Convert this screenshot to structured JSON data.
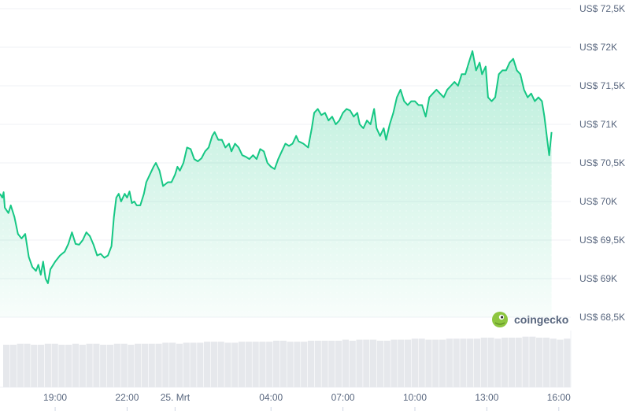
{
  "chart_data": {
    "type": "area",
    "y_ticks": [
      "US$ 72,5K",
      "US$ 72K",
      "US$ 71,5K",
      "US$ 71K",
      "US$ 70,5K",
      "US$ 70K",
      "US$ 69,5K",
      "US$ 69K",
      "US$ 68,5K"
    ],
    "y_tick_values": [
      72500,
      72000,
      71500,
      71000,
      70500,
      70000,
      69500,
      69000,
      68500
    ],
    "ylim": [
      68500,
      72500
    ],
    "x_ticks": [
      "19:00",
      "22:00",
      "25. Mrt",
      "04:00",
      "07:00",
      "10:00",
      "13:00",
      "16:00"
    ],
    "x_tick_hours": [
      19,
      22,
      24,
      28,
      31,
      34,
      37,
      40
    ],
    "xlim_hours": [
      16.7,
      40.5
    ],
    "grid": true,
    "line_color": "#16c784",
    "series": [
      {
        "points": [
          [
            16.7,
            70100
          ],
          [
            16.8,
            70050
          ],
          [
            16.85,
            70120
          ],
          [
            16.9,
            69920
          ],
          [
            17.05,
            69850
          ],
          [
            17.15,
            69950
          ],
          [
            17.3,
            69800
          ],
          [
            17.45,
            69580
          ],
          [
            17.6,
            69520
          ],
          [
            17.75,
            69580
          ],
          [
            17.9,
            69280
          ],
          [
            18.05,
            69150
          ],
          [
            18.2,
            69100
          ],
          [
            18.3,
            69180
          ],
          [
            18.4,
            69050
          ],
          [
            18.5,
            69220
          ],
          [
            18.6,
            69000
          ],
          [
            18.7,
            68940
          ],
          [
            18.8,
            69120
          ],
          [
            19.0,
            69220
          ],
          [
            19.2,
            69300
          ],
          [
            19.4,
            69350
          ],
          [
            19.55,
            69450
          ],
          [
            19.7,
            69600
          ],
          [
            19.85,
            69450
          ],
          [
            20.0,
            69440
          ],
          [
            20.15,
            69500
          ],
          [
            20.3,
            69600
          ],
          [
            20.45,
            69550
          ],
          [
            20.6,
            69440
          ],
          [
            20.75,
            69300
          ],
          [
            20.9,
            69320
          ],
          [
            21.05,
            69270
          ],
          [
            21.2,
            69300
          ],
          [
            21.35,
            69420
          ],
          [
            21.45,
            69800
          ],
          [
            21.55,
            70050
          ],
          [
            21.65,
            70100
          ],
          [
            21.75,
            70000
          ],
          [
            21.9,
            70100
          ],
          [
            22.0,
            70050
          ],
          [
            22.1,
            70130
          ],
          [
            22.2,
            69980
          ],
          [
            22.3,
            70000
          ],
          [
            22.4,
            69950
          ],
          [
            22.55,
            69950
          ],
          [
            22.7,
            70100
          ],
          [
            22.8,
            70250
          ],
          [
            22.95,
            70350
          ],
          [
            23.1,
            70450
          ],
          [
            23.2,
            70500
          ],
          [
            23.35,
            70400
          ],
          [
            23.5,
            70200
          ],
          [
            23.7,
            70250
          ],
          [
            23.85,
            70250
          ],
          [
            24.0,
            70350
          ],
          [
            24.1,
            70450
          ],
          [
            24.2,
            70400
          ],
          [
            24.35,
            70500
          ],
          [
            24.5,
            70700
          ],
          [
            24.65,
            70680
          ],
          [
            24.8,
            70550
          ],
          [
            24.95,
            70520
          ],
          [
            25.1,
            70560
          ],
          [
            25.25,
            70650
          ],
          [
            25.4,
            70700
          ],
          [
            25.55,
            70850
          ],
          [
            25.65,
            70900
          ],
          [
            25.8,
            70800
          ],
          [
            25.95,
            70800
          ],
          [
            26.1,
            70700
          ],
          [
            26.25,
            70750
          ],
          [
            26.35,
            70650
          ],
          [
            26.5,
            70750
          ],
          [
            26.65,
            70700
          ],
          [
            26.8,
            70600
          ],
          [
            26.95,
            70580
          ],
          [
            27.1,
            70550
          ],
          [
            27.25,
            70600
          ],
          [
            27.4,
            70550
          ],
          [
            27.55,
            70680
          ],
          [
            27.7,
            70650
          ],
          [
            27.85,
            70500
          ],
          [
            28.0,
            70450
          ],
          [
            28.15,
            70420
          ],
          [
            28.3,
            70550
          ],
          [
            28.45,
            70650
          ],
          [
            28.6,
            70750
          ],
          [
            28.75,
            70720
          ],
          [
            28.9,
            70750
          ],
          [
            29.05,
            70850
          ],
          [
            29.15,
            70780
          ],
          [
            29.35,
            70750
          ],
          [
            29.55,
            70700
          ],
          [
            29.7,
            70950
          ],
          [
            29.8,
            71150
          ],
          [
            29.95,
            71200
          ],
          [
            30.1,
            71120
          ],
          [
            30.25,
            71150
          ],
          [
            30.4,
            71050
          ],
          [
            30.55,
            71100
          ],
          [
            30.7,
            71000
          ],
          [
            30.85,
            71050
          ],
          [
            31.0,
            71150
          ],
          [
            31.15,
            71200
          ],
          [
            31.3,
            71180
          ],
          [
            31.45,
            71100
          ],
          [
            31.6,
            71150
          ],
          [
            31.7,
            71000
          ],
          [
            31.85,
            70950
          ],
          [
            32.0,
            71050
          ],
          [
            32.15,
            71000
          ],
          [
            32.3,
            71200
          ],
          [
            32.4,
            70950
          ],
          [
            32.55,
            70850
          ],
          [
            32.7,
            70950
          ],
          [
            32.8,
            70800
          ],
          [
            32.95,
            71000
          ],
          [
            33.1,
            71150
          ],
          [
            33.25,
            71350
          ],
          [
            33.4,
            71450
          ],
          [
            33.55,
            71300
          ],
          [
            33.7,
            71250
          ],
          [
            33.85,
            71300
          ],
          [
            34.0,
            71300
          ],
          [
            34.15,
            71250
          ],
          [
            34.3,
            71250
          ],
          [
            34.45,
            71100
          ],
          [
            34.6,
            71350
          ],
          [
            34.75,
            71400
          ],
          [
            34.9,
            71450
          ],
          [
            35.05,
            71400
          ],
          [
            35.2,
            71350
          ],
          [
            35.35,
            71450
          ],
          [
            35.5,
            71500
          ],
          [
            35.65,
            71550
          ],
          [
            35.8,
            71500
          ],
          [
            35.95,
            71650
          ],
          [
            36.1,
            71650
          ],
          [
            36.25,
            71800
          ],
          [
            36.4,
            71950
          ],
          [
            36.55,
            71700
          ],
          [
            36.7,
            71800
          ],
          [
            36.8,
            71650
          ],
          [
            36.95,
            71750
          ],
          [
            37.05,
            71350
          ],
          [
            37.2,
            71300
          ],
          [
            37.35,
            71350
          ],
          [
            37.5,
            71650
          ],
          [
            37.65,
            71700
          ],
          [
            37.8,
            71700
          ],
          [
            37.95,
            71800
          ],
          [
            38.1,
            71850
          ],
          [
            38.25,
            71700
          ],
          [
            38.4,
            71650
          ],
          [
            38.55,
            71450
          ],
          [
            38.7,
            71350
          ],
          [
            38.85,
            71400
          ],
          [
            39.0,
            71300
          ],
          [
            39.15,
            71350
          ],
          [
            39.3,
            71300
          ],
          [
            39.4,
            71100
          ],
          [
            39.5,
            70850
          ],
          [
            39.6,
            70600
          ],
          [
            39.7,
            70900
          ]
        ]
      }
    ],
    "volume": [
      42,
      42,
      43,
      43,
      42,
      42,
      43,
      43,
      42,
      42,
      43,
      42,
      43,
      43,
      42,
      42,
      43,
      43,
      42,
      43,
      43,
      43,
      43,
      44,
      44,
      43,
      44,
      44,
      44,
      45,
      45,
      45,
      44,
      44,
      45,
      45,
      45,
      45,
      45,
      46,
      46,
      45,
      45,
      45,
      46,
      46,
      46,
      46,
      46,
      47,
      46,
      47,
      47,
      47,
      46,
      46,
      47,
      47,
      47,
      48,
      48,
      47,
      47,
      47,
      48,
      48,
      48,
      48,
      48,
      49,
      49,
      48,
      49,
      49,
      49,
      50,
      50,
      49,
      49,
      48,
      47,
      48
    ]
  },
  "watermark": {
    "text": "coingecko"
  }
}
